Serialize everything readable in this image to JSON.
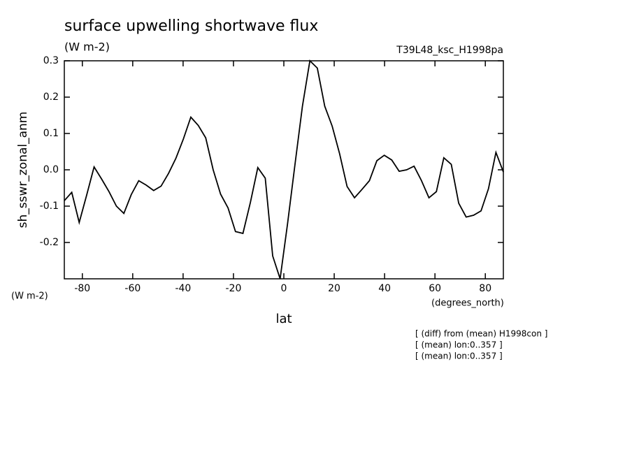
{
  "chart_data": {
    "type": "line",
    "title": "surface upwelling shortwave flux",
    "subtitle": "(W m-2)",
    "run_label": "T39L48_ksc_H1998pa",
    "y_label": "sh_sswr_zonal_anm",
    "y_units": "(W m-2)",
    "x_units": "(degrees_north)",
    "x_label": "lat",
    "notes": [
      "[ (diff) from (mean) H1998con ]",
      "[ (mean) lon:0..357 ]",
      "[ (mean) lon:0..357 ]"
    ],
    "x": [
      -87.16,
      -84.21,
      -81.25,
      -78.3,
      -75.34,
      -72.39,
      -69.43,
      -66.48,
      -63.52,
      -60.57,
      -57.61,
      -54.66,
      -51.7,
      -48.75,
      -45.79,
      -42.84,
      -39.88,
      -36.93,
      -33.97,
      -31.02,
      -28.06,
      -25.11,
      -22.15,
      -19.2,
      -16.24,
      -13.29,
      -10.34,
      -7.38,
      -4.43,
      -1.48,
      1.48,
      4.43,
      7.38,
      10.34,
      13.29,
      16.24,
      19.2,
      22.15,
      25.11,
      28.06,
      31.02,
      33.97,
      36.93,
      39.88,
      42.84,
      45.79,
      48.75,
      51.7,
      54.66,
      57.61,
      60.57,
      63.52,
      66.48,
      69.43,
      72.39,
      75.34,
      78.3,
      81.25,
      84.21,
      87.16
    ],
    "values": [
      -0.085,
      -0.062,
      -0.145,
      -0.07,
      0.008,
      -0.025,
      -0.06,
      -0.1,
      -0.12,
      -0.068,
      -0.03,
      -0.042,
      -0.057,
      -0.045,
      -0.01,
      0.032,
      0.085,
      0.145,
      0.122,
      0.088,
      0.0,
      -0.067,
      -0.105,
      -0.17,
      -0.175,
      -0.09,
      0.006,
      -0.023,
      -0.237,
      -0.3,
      -0.148,
      0.015,
      0.175,
      0.3,
      0.28,
      0.175,
      0.12,
      0.044,
      -0.046,
      -0.077,
      -0.054,
      -0.03,
      0.025,
      0.04,
      0.027,
      -0.004,
      0.0,
      0.01,
      -0.03,
      -0.077,
      -0.06,
      0.033,
      0.015,
      -0.092,
      -0.13,
      -0.125,
      -0.113,
      -0.052,
      0.048,
      -0.006
    ],
    "color": "#000000",
    "xlim": [
      -87.16,
      87.16
    ],
    "ylim": [
      -0.3,
      0.3
    ],
    "xticks": [
      -80,
      -60,
      -40,
      -20,
      0,
      20,
      40,
      60,
      80
    ],
    "yticks": [
      -0.2,
      -0.1,
      {
        "value": 0,
        "label": "0.0"
      },
      0.1,
      0.2,
      0.3
    ]
  }
}
